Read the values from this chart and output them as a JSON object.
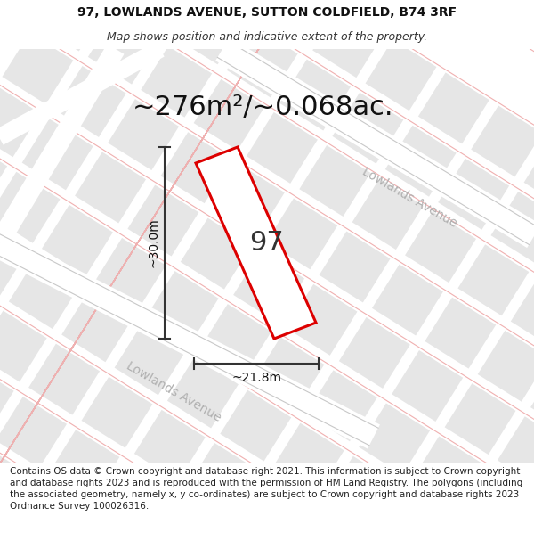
{
  "title_line1": "97, LOWLANDS AVENUE, SUTTON COLDFIELD, B74 3RF",
  "title_line2": "Map shows position and indicative extent of the property.",
  "area_text": "~276m²/~0.068ac.",
  "property_number": "97",
  "dim_vertical": "~30.0m",
  "dim_horizontal": "~21.8m",
  "footer_text": "Contains OS data © Crown copyright and database right 2021. This information is subject to Crown copyright and database rights 2023 and is reproduced with the permission of HM Land Registry. The polygons (including the associated geometry, namely x, y co-ordinates) are subject to Crown copyright and database rights 2023 Ordnance Survey 100026316.",
  "bg_color": "#ffffff",
  "map_bg": "#f7f7f7",
  "block_color": "#e2e2e2",
  "block_color2": "#ebebeb",
  "red_outline": "#dd0000",
  "dim_line_color": "#333333",
  "road_label_color": "#b0b0b0",
  "street_line_color": "#f0b0b0",
  "road_border_color": "#cccccc",
  "title_fontsize": 10,
  "subtitle_fontsize": 9,
  "area_fontsize": 22,
  "footer_fontsize": 7.5,
  "prop_label_fontsize": 22,
  "dim_fontsize": 10,
  "road_label_fontsize": 10
}
